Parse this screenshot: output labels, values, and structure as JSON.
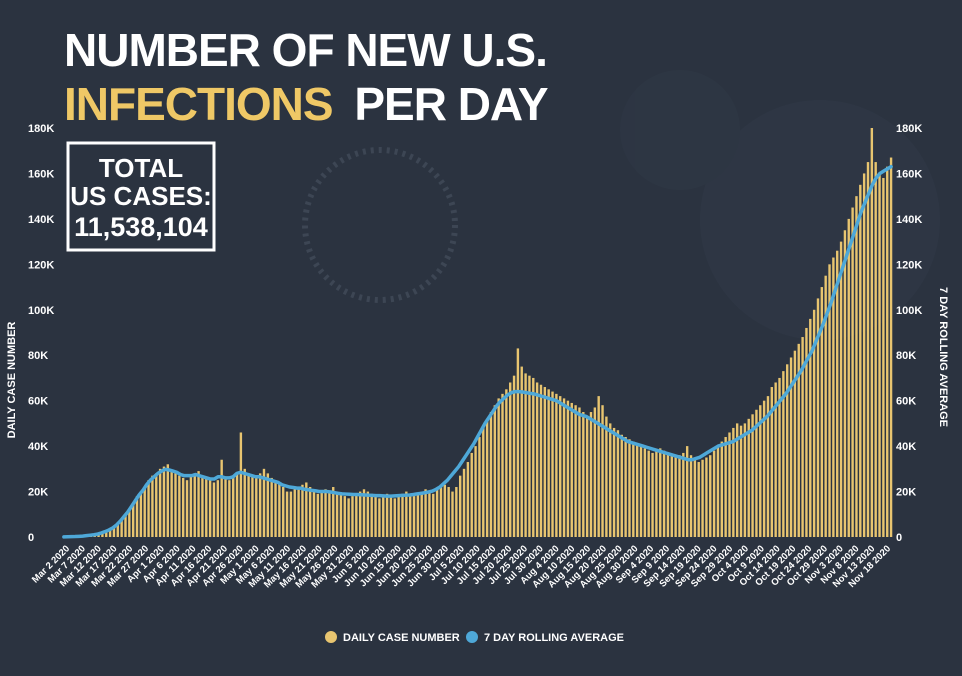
{
  "title": {
    "line1": "NUMBER OF NEW U.S.",
    "line2_highlight": "INFECTIONS",
    "line2_rest": "PER DAY"
  },
  "totals": {
    "label_line1": "TOTAL",
    "label_line2": "US CASES:",
    "value": "11,538,104"
  },
  "colors": {
    "background": "#2b3340",
    "bar": "#e8c570",
    "line": "#4ea8d8",
    "title_white": "#ffffff",
    "title_yellow": "#efc866",
    "text": "#ffffff"
  },
  "legend": {
    "bars_label": "DAILY CASE NUMBER",
    "line_label": "7 DAY ROLLING AVERAGE"
  },
  "chart_data": {
    "type": "bar",
    "title": "NUMBER OF NEW U.S. INFECTIONS PER DAY",
    "ylabel": "DAILY CASE NUMBER",
    "y2label": "7 DAY ROLLING AVERAGE",
    "ylim": [
      0,
      180000
    ],
    "y_ticks": [
      "0",
      "20K",
      "40K",
      "60K",
      "80K",
      "100K",
      "120K",
      "140K",
      "160K",
      "180K"
    ],
    "x_tick_labels": [
      "Mar 2 2020",
      "Mar 7 2020",
      "Mar 12 2020",
      "Mar 17 2020",
      "Mar 22 2020",
      "Mar 27 2020",
      "Apr 1 2020",
      "Apr 6 2020",
      "Apr 11 2020",
      "Apr 16 2020",
      "Apr 21 2020",
      "Apr 26 2020",
      "May 1 2020",
      "May 6 2020",
      "May 11 2020",
      "May 16 2020",
      "May 21 2020",
      "May 26 2020",
      "May 31 2020",
      "Jun 5 2020",
      "Jun 10 2020",
      "Jun 15 2020",
      "Jun 20 2020",
      "Jun 25 2020",
      "Jun 30 2020",
      "Jul 5 2020",
      "Jul 10 2020",
      "Jul 15 2020",
      "Jul 20 2020",
      "Jul 25 2020",
      "Jul 30 2020",
      "Aug 4 2020",
      "Aug 10 2020",
      "Aug 15 2020",
      "Aug 20 2020",
      "Aug 25 2020",
      "Aug 30 2020",
      "Sep 4 2020",
      "Sep 9 2020",
      "Sep 14 2020",
      "Sep 19 2020",
      "Sep 24 2020",
      "Sep 29 2020",
      "Oct 4 2020",
      "Oct 9 2020",
      "Oct 14 2020",
      "Oct 19 2020",
      "Oct 24 2020",
      "Oct 29 2020",
      "Nov 3 2020",
      "Nov 8 2020",
      "Nov 13 2020",
      "Nov 18 2020"
    ],
    "grid": false,
    "legend_position": "bottom-center",
    "series": [
      {
        "name": "DAILY CASE NUMBER",
        "type": "bar",
        "values": [
          100,
          200,
          300,
          400,
          500,
          600,
          800,
          1000,
          1200,
          1500,
          2000,
          2700,
          3500,
          4500,
          6000,
          8000,
          10000,
          12500,
          15000,
          18000,
          20000,
          22000,
          25000,
          27000,
          28000,
          30000,
          31000,
          32000,
          29000,
          28000,
          27000,
          26000,
          25000,
          27000,
          28000,
          29000,
          27000,
          26000,
          25000,
          24000,
          25000,
          34000,
          26000,
          25000,
          27000,
          28000,
          46000,
          30000,
          28000,
          27000,
          26000,
          28000,
          30000,
          28000,
          26000,
          25000,
          24000,
          22000,
          20000,
          20000,
          21000,
          22000,
          23000,
          24000,
          22000,
          20000,
          19000,
          20000,
          21000,
          20000,
          22000,
          20000,
          19000,
          18000,
          17000,
          18000,
          19000,
          20000,
          21000,
          20000,
          19000,
          18000,
          17000,
          18000,
          19000,
          18000,
          17000,
          18000,
          19000,
          20000,
          19000,
          18000,
          19000,
          20000,
          21000,
          20000,
          19000,
          21000,
          23000,
          23000,
          22000,
          20000,
          22000,
          27000,
          30000,
          33000,
          37000,
          40000,
          44000,
          48000,
          52000,
          55000,
          58000,
          61000,
          63000,
          65000,
          68000,
          71000,
          83000,
          75000,
          72000,
          71000,
          70000,
          68000,
          67000,
          66000,
          65000,
          64000,
          63000,
          62000,
          61000,
          60000,
          59000,
          58000,
          57000,
          55000,
          53000,
          55000,
          57000,
          62000,
          58000,
          53000,
          50000,
          48000,
          47000,
          45000,
          44000,
          43000,
          42000,
          41000,
          40000,
          39000,
          38000,
          37000,
          38000,
          39000,
          38000,
          37000,
          36000,
          35000,
          36000,
          37000,
          40000,
          36000,
          34000,
          33000,
          34000,
          35000,
          36000,
          38000,
          40000,
          42000,
          44000,
          46000,
          48000,
          50000,
          49000,
          50000,
          52000,
          54000,
          56000,
          58000,
          60000,
          62000,
          66000,
          68000,
          70000,
          73000,
          76000,
          79000,
          82000,
          85000,
          88000,
          92000,
          96000,
          100000,
          105000,
          110000,
          115000,
          120000,
          123000,
          126000,
          130000,
          135000,
          140000,
          145000,
          150000,
          155000,
          160000,
          165000,
          180000,
          165000,
          160000,
          158000,
          163000,
          167000
        ]
      },
      {
        "name": "7 DAY ROLLING AVERAGE",
        "type": "line",
        "values": [
          50,
          100,
          150,
          200,
          300,
          400,
          600,
          800,
          1000,
          1300,
          1800,
          2400,
          3100,
          4000,
          5300,
          7000,
          9000,
          11000,
          13500,
          16000,
          18500,
          20500,
          23000,
          25000,
          26500,
          28000,
          29000,
          29800,
          29500,
          29000,
          28500,
          27500,
          27000,
          27000,
          27000,
          27500,
          27000,
          26500,
          26000,
          25500,
          25500,
          26500,
          26500,
          26000,
          26000,
          26500,
          28000,
          28500,
          28000,
          27500,
          27000,
          26500,
          26500,
          26000,
          25500,
          25000,
          24500,
          24000,
          23000,
          22500,
          22000,
          21800,
          21500,
          21500,
          21000,
          20800,
          20500,
          20300,
          20000,
          20000,
          20000,
          19800,
          19500,
          19200,
          19000,
          18900,
          18800,
          18700,
          18700,
          18600,
          18500,
          18400,
          18300,
          18200,
          18200,
          18100,
          18000,
          18000,
          18100,
          18200,
          18300,
          18400,
          18500,
          18700,
          19000,
          19200,
          19500,
          19800,
          20200,
          21000,
          22000,
          23500,
          25000,
          27000,
          29000,
          31000,
          33500,
          36000,
          38500,
          41000,
          44000,
          47000,
          50000,
          52500,
          55000,
          57500,
          59500,
          61000,
          62500,
          63500,
          64000,
          64000,
          63800,
          63500,
          63200,
          63000,
          62500,
          62000,
          61500,
          61000,
          60500,
          60000,
          59000,
          58000,
          57000,
          56000,
          55000,
          54000,
          53500,
          53000,
          52000,
          51000,
          50000,
          49000,
          48000,
          47000,
          46000,
          45000,
          44000,
          43000,
          42000,
          41500,
          41000,
          40500,
          40000,
          39500,
          39000,
          38500,
          38000,
          37500,
          37000,
          36500,
          36000,
          35500,
          35000,
          34500,
          34000,
          34000,
          34500,
          35000,
          36000,
          37000,
          38000,
          39000,
          40000,
          40500,
          41000,
          41500,
          42000,
          43000,
          44000,
          45000,
          46000,
          47000,
          48500,
          50000,
          51500,
          53000,
          55000,
          57000,
          59000,
          61000,
          63000,
          65500,
          68000,
          70500,
          73000,
          76000,
          79000,
          82000,
          86000,
          90000,
          94000,
          98500,
          103000,
          108000,
          113000,
          118000,
          123000,
          128000,
          133000,
          138000,
          143000,
          147000,
          151000,
          155000,
          158000,
          160000,
          161000,
          162000,
          163000
        ]
      }
    ]
  }
}
